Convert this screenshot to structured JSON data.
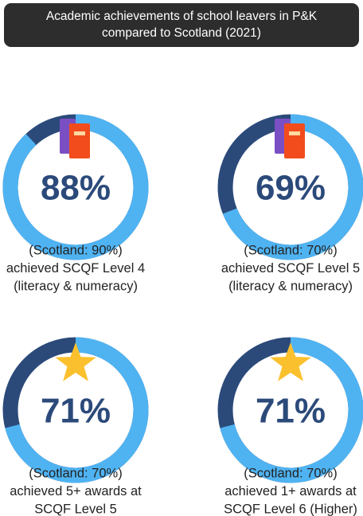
{
  "header": {
    "title_lines": [
      "Academic achievements of school leavers in P&K",
      "compared to Scotland (2021)"
    ]
  },
  "items": [
    {
      "value": 88,
      "value_label": "88%",
      "caption_lines": [
        "(Scotland: 90%)",
        "achieved SCQF Level 4",
        "(literacy & numeracy)"
      ]
    },
    {
      "value": 69,
      "value_label": "69%",
      "caption_lines": [
        "(Scotland: 70%)",
        "achieved SCQF Level 5",
        "(literacy & numeracy)"
      ]
    },
    {
      "value": 71,
      "value_label": "71%",
      "caption_lines": [
        "(Scotland: 70%)",
        "achieved 5+ awards at",
        "SCQF Level 5"
      ]
    },
    {
      "value": 71,
      "value_label": "71%",
      "caption_lines": [
        "(Scotland: 70%)",
        "achieved 1+ awards at",
        "SCQF Level 6 (Higher)"
      ]
    }
  ]
}
